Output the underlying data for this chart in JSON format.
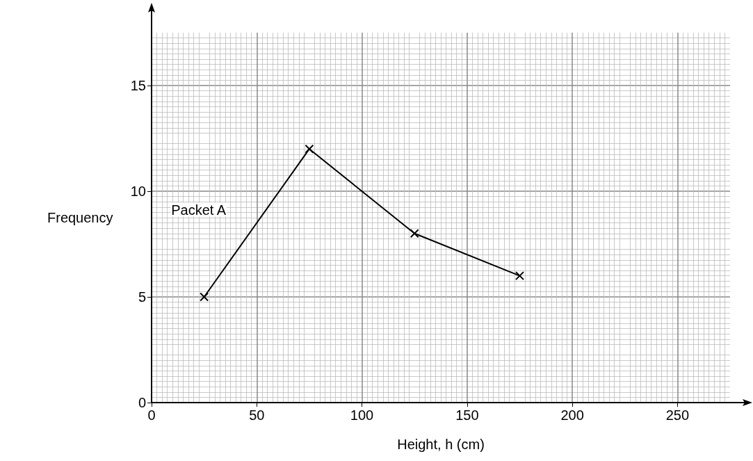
{
  "chart_data": {
    "type": "line",
    "xlabel": "Height, h (cm)",
    "ylabel": "Frequency",
    "x": [
      25,
      75,
      125,
      175
    ],
    "series": [
      {
        "name": "Packet A",
        "color": "#000000",
        "values": [
          5,
          12,
          8,
          6
        ]
      }
    ],
    "xlim": [
      0,
      275
    ],
    "xticks": [
      0,
      50,
      100,
      150,
      200,
      250
    ],
    "ylim": [
      0,
      17.5
    ],
    "yticks": [
      0,
      5,
      10,
      15
    ],
    "grid": true,
    "marker": "cross",
    "line_style": "solid",
    "legend": false
  }
}
